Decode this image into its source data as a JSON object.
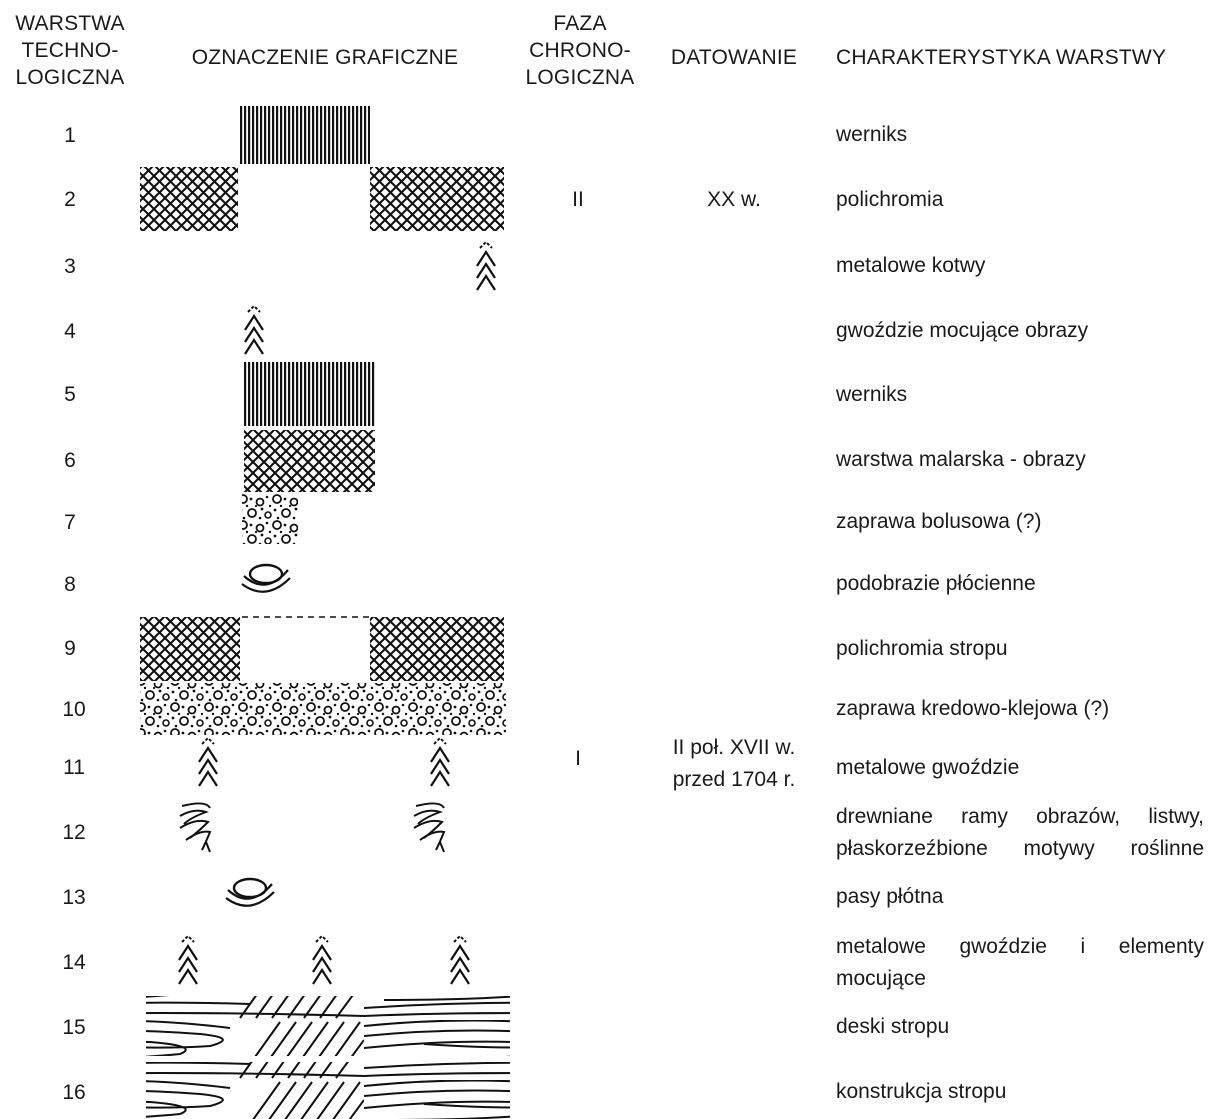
{
  "headers": {
    "layer": [
      "WARSTWA",
      "TECHNO-",
      "LOGICZNA"
    ],
    "graphic": "OZNACZENIE GRAFICZNE",
    "phase": [
      "FAZA",
      "CHRONO-",
      "LOGICZNA"
    ],
    "dating": "DATOWANIE",
    "characteristic": "CHARAKTERYSTYKA WARSTWY"
  },
  "layers": [
    {
      "num": "1",
      "desc": [
        "werniks"
      ]
    },
    {
      "num": "2",
      "desc": [
        "polichromia"
      ]
    },
    {
      "num": "3",
      "desc": [
        "metalowe kotwy"
      ]
    },
    {
      "num": "4",
      "desc": [
        "gwoździe mocujące obrazy"
      ]
    },
    {
      "num": "5",
      "desc": [
        "werniks"
      ]
    },
    {
      "num": "6",
      "desc": [
        "warstwa malarska - obrazy"
      ]
    },
    {
      "num": "7",
      "desc": [
        "zaprawa bolusowa (?)"
      ]
    },
    {
      "num": "8",
      "desc": [
        "podobrazie płócienne"
      ]
    },
    {
      "num": "9",
      "desc": [
        "polichromia stropu"
      ]
    },
    {
      "num": "10",
      "desc": [
        "zaprawa kredowo-klejowa (?)"
      ]
    },
    {
      "num": "11",
      "desc": [
        "metalowe gwoździe"
      ]
    },
    {
      "num": "12",
      "desc": [
        "drewniane ramy obrazów, listwy,",
        "płaskorzeźbione motywy roślinne"
      ]
    },
    {
      "num": "13",
      "desc": [
        "pasy płótna"
      ]
    },
    {
      "num": "14",
      "desc": [
        "metalowe gwoździe i elementy",
        "mocujące"
      ]
    },
    {
      "num": "15",
      "desc": [
        "deski stropu"
      ]
    },
    {
      "num": "16",
      "desc": [
        "konstrukcja stropu"
      ]
    }
  ],
  "phases": [
    {
      "label": "II",
      "dating": [
        "XX w."
      ]
    },
    {
      "label": "I",
      "dating": [
        "II poł. XVII w.",
        "przed 1704 r."
      ]
    }
  ],
  "symbols": {
    "varnish": "vertical-stripes",
    "paint": "crosshatch",
    "nail": "chevron-nail",
    "ground": "dotted-circles",
    "canvas": "canvas-roll",
    "wood": "wood-grain"
  }
}
